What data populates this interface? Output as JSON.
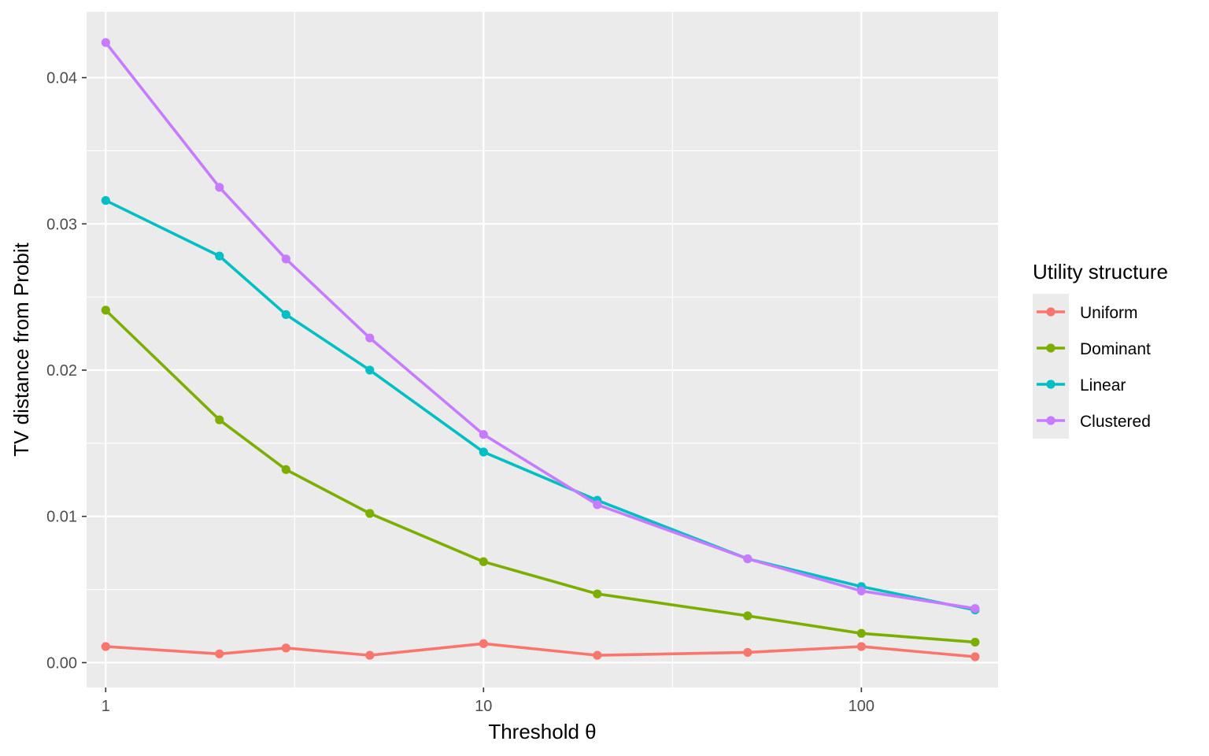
{
  "chart_data": {
    "type": "line",
    "xlabel": "Threshold θ",
    "ylabel": "TV distance from Probit",
    "x_scale": "log10",
    "xlim": [
      0.89,
      230
    ],
    "ylim": [
      -0.0017,
      0.0445
    ],
    "x_ticks": [
      1,
      10,
      100
    ],
    "x_tick_labels": [
      "1",
      "10",
      "100"
    ],
    "y_ticks": [
      0,
      0.01,
      0.02,
      0.03,
      0.04
    ],
    "y_tick_labels": [
      "0.00",
      "0.01",
      "0.02",
      "0.03",
      "0.04"
    ],
    "grid": true,
    "x": [
      1,
      2,
      3,
      5,
      10,
      20,
      50,
      100,
      200
    ],
    "legend": {
      "title": "Utility structure",
      "position": "right"
    },
    "series": [
      {
        "name": "Uniform",
        "color": "#F8766D",
        "values": [
          0.0011,
          0.0006,
          0.001,
          0.0005,
          0.0013,
          0.0005,
          0.0007,
          0.0011,
          0.0004
        ]
      },
      {
        "name": "Dominant",
        "color": "#7CAE00",
        "values": [
          0.0241,
          0.0166,
          0.0132,
          0.0102,
          0.0069,
          0.0047,
          0.0032,
          0.002,
          0.0014
        ]
      },
      {
        "name": "Linear",
        "color": "#00BFC4",
        "values": [
          0.0316,
          0.0278,
          0.0238,
          0.02,
          0.0144,
          0.0111,
          0.0071,
          0.0052,
          0.0036
        ]
      },
      {
        "name": "Clustered",
        "color": "#C77CFF",
        "values": [
          0.0424,
          0.0325,
          0.0276,
          0.0222,
          0.0156,
          0.0108,
          0.0071,
          0.0049,
          0.0037
        ]
      }
    ]
  }
}
